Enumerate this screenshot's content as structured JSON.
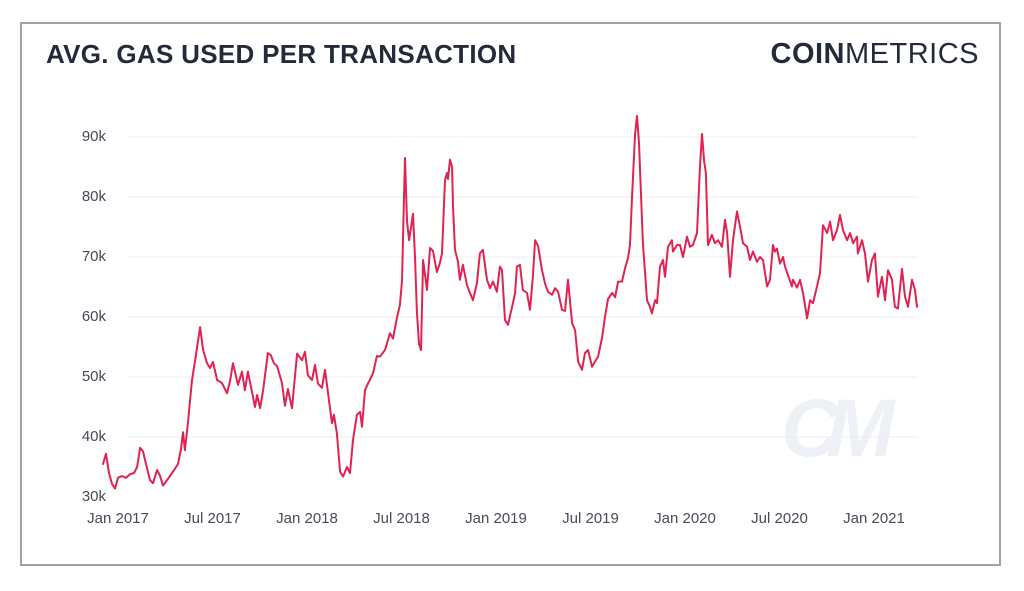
{
  "card": {
    "title": "AVG. GAS USED PER TRANSACTION",
    "logo": {
      "bold": "COIN",
      "light": "METRICS"
    },
    "watermark": "CM"
  },
  "chart_data": {
    "type": "line",
    "title": "AVG. GAS USED PER TRANSACTION",
    "grid": "horizontal",
    "legend": "none",
    "x_axis": {
      "unit": "months since Jan 2017",
      "tick_labels": [
        "Jan 2017",
        "Jul 2017",
        "Jan 2018",
        "Jul 2018",
        "Jan 2019",
        "Jul 2019",
        "Jan 2020",
        "Jul 2020",
        "Jan 2021"
      ],
      "tick_months": [
        0,
        6,
        12,
        18,
        24,
        30,
        36,
        42,
        48
      ],
      "range_months": [
        -1,
        50.8
      ]
    },
    "y_axis": {
      "unit": "gas (thousands)",
      "tick_values": [
        90,
        80,
        70,
        60,
        50,
        40,
        30
      ],
      "tick_labels": [
        "90k",
        "80k",
        "70k",
        "60k",
        "50k",
        "40k",
        "30k"
      ],
      "gridline_values": [
        90,
        80,
        70,
        60,
        50,
        40
      ],
      "ylim": [
        30,
        95
      ]
    },
    "series": [
      {
        "name": "Avg. gas used per transaction",
        "color": "#e02350",
        "points": [
          [
            -0.95,
            35.5
          ],
          [
            -0.76,
            37.2
          ],
          [
            -0.57,
            34.0
          ],
          [
            -0.38,
            32.2
          ],
          [
            -0.19,
            31.4
          ],
          [
            0,
            33.2
          ],
          [
            0.25,
            33.5
          ],
          [
            0.51,
            33.2
          ],
          [
            0.76,
            33.8
          ],
          [
            1.02,
            34.0
          ],
          [
            1.21,
            35.0
          ],
          [
            1.4,
            38.2
          ],
          [
            1.59,
            37.6
          ],
          [
            1.78,
            35.5
          ],
          [
            2.03,
            32.8
          ],
          [
            2.22,
            32.3
          ],
          [
            2.48,
            34.5
          ],
          [
            2.67,
            33.5
          ],
          [
            2.86,
            31.9
          ],
          [
            3.11,
            32.8
          ],
          [
            3.3,
            33.5
          ],
          [
            3.56,
            34.5
          ],
          [
            3.81,
            35.5
          ],
          [
            4.0,
            38.0
          ],
          [
            4.13,
            40.8
          ],
          [
            4.25,
            37.8
          ],
          [
            4.44,
            42.3
          ],
          [
            4.7,
            49.5
          ],
          [
            4.89,
            52.6
          ],
          [
            5.08,
            56.0
          ],
          [
            5.21,
            58.3
          ],
          [
            5.4,
            54.5
          ],
          [
            5.65,
            52.3
          ],
          [
            5.84,
            51.5
          ],
          [
            6.03,
            52.5
          ],
          [
            6.29,
            49.5
          ],
          [
            6.6,
            49.0
          ],
          [
            6.92,
            47.3
          ],
          [
            7.11,
            49.3
          ],
          [
            7.3,
            52.3
          ],
          [
            7.62,
            48.7
          ],
          [
            7.87,
            50.9
          ],
          [
            8.06,
            47.8
          ],
          [
            8.25,
            50.9
          ],
          [
            8.51,
            47.5
          ],
          [
            8.7,
            45.0
          ],
          [
            8.83,
            47.0
          ],
          [
            9.02,
            44.8
          ],
          [
            9.21,
            47.8
          ],
          [
            9.52,
            54.0
          ],
          [
            9.71,
            53.6
          ],
          [
            9.9,
            52.3
          ],
          [
            10.1,
            51.8
          ],
          [
            10.41,
            49.0
          ],
          [
            10.6,
            45.2
          ],
          [
            10.79,
            48.0
          ],
          [
            11.05,
            44.8
          ],
          [
            11.37,
            53.9
          ],
          [
            11.68,
            52.8
          ],
          [
            11.87,
            54.2
          ],
          [
            12.06,
            50.3
          ],
          [
            12.32,
            49.5
          ],
          [
            12.51,
            52.0
          ],
          [
            12.7,
            48.9
          ],
          [
            12.95,
            48.2
          ],
          [
            13.14,
            51.2
          ],
          [
            13.33,
            47.5
          ],
          [
            13.59,
            42.3
          ],
          [
            13.71,
            43.7
          ],
          [
            13.9,
            40.6
          ],
          [
            14.1,
            34.2
          ],
          [
            14.29,
            33.4
          ],
          [
            14.54,
            35.0
          ],
          [
            14.73,
            34.0
          ],
          [
            14.92,
            39.5
          ],
          [
            15.17,
            43.7
          ],
          [
            15.37,
            44.2
          ],
          [
            15.49,
            41.7
          ],
          [
            15.68,
            47.8
          ],
          [
            15.87,
            48.9
          ],
          [
            16.19,
            50.6
          ],
          [
            16.44,
            53.5
          ],
          [
            16.63,
            53.4
          ],
          [
            16.95,
            54.5
          ],
          [
            17.27,
            57.3
          ],
          [
            17.46,
            56.4
          ],
          [
            17.71,
            59.8
          ],
          [
            17.9,
            62.0
          ],
          [
            18.03,
            66.0
          ],
          [
            18.16,
            80.0
          ],
          [
            18.22,
            86.5
          ],
          [
            18.35,
            76.0
          ],
          [
            18.48,
            72.8
          ],
          [
            18.73,
            77.2
          ],
          [
            18.86,
            70.0
          ],
          [
            18.98,
            60.9
          ],
          [
            19.11,
            55.5
          ],
          [
            19.24,
            54.5
          ],
          [
            19.37,
            69.5
          ],
          [
            19.62,
            64.5
          ],
          [
            19.81,
            71.5
          ],
          [
            20.0,
            71.0
          ],
          [
            20.25,
            67.5
          ],
          [
            20.44,
            69.0
          ],
          [
            20.57,
            70.6
          ],
          [
            20.76,
            82.8
          ],
          [
            20.89,
            84.0
          ],
          [
            20.95,
            83.0
          ],
          [
            21.08,
            86.2
          ],
          [
            21.21,
            85.0
          ],
          [
            21.27,
            78.4
          ],
          [
            21.4,
            71.2
          ],
          [
            21.59,
            69.2
          ],
          [
            21.71,
            66.2
          ],
          [
            21.9,
            68.7
          ],
          [
            22.16,
            65.3
          ],
          [
            22.35,
            64.0
          ],
          [
            22.54,
            62.8
          ],
          [
            22.79,
            65.6
          ],
          [
            22.98,
            70.6
          ],
          [
            23.17,
            71.2
          ],
          [
            23.43,
            66.2
          ],
          [
            23.62,
            64.8
          ],
          [
            23.81,
            65.9
          ],
          [
            24.06,
            64.2
          ],
          [
            24.25,
            68.4
          ],
          [
            24.38,
            67.8
          ],
          [
            24.57,
            59.5
          ],
          [
            24.76,
            58.7
          ],
          [
            25.02,
            61.7
          ],
          [
            25.21,
            64.0
          ],
          [
            25.33,
            68.4
          ],
          [
            25.52,
            68.7
          ],
          [
            25.71,
            64.5
          ],
          [
            25.97,
            64.0
          ],
          [
            26.16,
            61.2
          ],
          [
            26.35,
            67.0
          ],
          [
            26.48,
            72.8
          ],
          [
            26.67,
            71.8
          ],
          [
            26.92,
            67.8
          ],
          [
            27.11,
            65.6
          ],
          [
            27.3,
            64.2
          ],
          [
            27.56,
            63.7
          ],
          [
            27.75,
            64.8
          ],
          [
            27.94,
            64.2
          ],
          [
            28.19,
            61.2
          ],
          [
            28.38,
            61.0
          ],
          [
            28.57,
            66.2
          ],
          [
            28.83,
            59.0
          ],
          [
            29.02,
            57.8
          ],
          [
            29.21,
            52.6
          ],
          [
            29.46,
            51.2
          ],
          [
            29.65,
            54.0
          ],
          [
            29.84,
            54.5
          ],
          [
            30.1,
            51.7
          ],
          [
            30.29,
            52.6
          ],
          [
            30.48,
            53.4
          ],
          [
            30.73,
            56.5
          ],
          [
            30.92,
            60.0
          ],
          [
            31.11,
            63.0
          ],
          [
            31.37,
            64.0
          ],
          [
            31.56,
            63.3
          ],
          [
            31.75,
            65.9
          ],
          [
            32.0,
            65.9
          ],
          [
            32.19,
            68.1
          ],
          [
            32.38,
            69.8
          ],
          [
            32.51,
            72.0
          ],
          [
            32.63,
            79.5
          ],
          [
            32.83,
            90.6
          ],
          [
            32.95,
            93.5
          ],
          [
            33.08,
            89.0
          ],
          [
            33.21,
            80.0
          ],
          [
            33.33,
            72.3
          ],
          [
            33.59,
            62.8
          ],
          [
            33.78,
            61.7
          ],
          [
            33.9,
            60.6
          ],
          [
            34.1,
            62.8
          ],
          [
            34.22,
            62.3
          ],
          [
            34.41,
            68.4
          ],
          [
            34.6,
            69.5
          ],
          [
            34.73,
            66.7
          ],
          [
            34.92,
            71.7
          ],
          [
            35.17,
            72.8
          ],
          [
            35.24,
            70.9
          ],
          [
            35.49,
            72.0
          ],
          [
            35.68,
            72.0
          ],
          [
            35.87,
            70.0
          ],
          [
            36.13,
            73.4
          ],
          [
            36.32,
            71.7
          ],
          [
            36.51,
            72.0
          ],
          [
            36.76,
            74.0
          ],
          [
            36.95,
            85.1
          ],
          [
            37.08,
            90.5
          ],
          [
            37.21,
            86.0
          ],
          [
            37.33,
            84.0
          ],
          [
            37.46,
            72.0
          ],
          [
            37.71,
            73.7
          ],
          [
            37.9,
            72.3
          ],
          [
            38.1,
            72.8
          ],
          [
            38.35,
            71.7
          ],
          [
            38.54,
            76.2
          ],
          [
            38.67,
            74.0
          ],
          [
            38.86,
            66.7
          ],
          [
            39.05,
            72.8
          ],
          [
            39.3,
            77.6
          ],
          [
            39.49,
            75.1
          ],
          [
            39.68,
            72.3
          ],
          [
            39.94,
            71.7
          ],
          [
            40.13,
            69.5
          ],
          [
            40.32,
            70.9
          ],
          [
            40.57,
            69.2
          ],
          [
            40.76,
            70.0
          ],
          [
            40.95,
            69.5
          ],
          [
            41.21,
            65.1
          ],
          [
            41.4,
            66.2
          ],
          [
            41.59,
            72.0
          ],
          [
            41.71,
            70.9
          ],
          [
            41.84,
            71.4
          ],
          [
            42.03,
            68.9
          ],
          [
            42.22,
            70.0
          ],
          [
            42.35,
            68.4
          ],
          [
            42.54,
            67.0
          ],
          [
            42.79,
            65.1
          ],
          [
            42.86,
            66.2
          ],
          [
            43.11,
            64.9
          ],
          [
            43.3,
            66.2
          ],
          [
            43.49,
            64.0
          ],
          [
            43.75,
            59.8
          ],
          [
            43.94,
            62.8
          ],
          [
            44.13,
            62.3
          ],
          [
            44.38,
            65.1
          ],
          [
            44.57,
            67.3
          ],
          [
            44.76,
            75.3
          ],
          [
            45.02,
            74.0
          ],
          [
            45.21,
            75.9
          ],
          [
            45.4,
            72.8
          ],
          [
            45.65,
            74.5
          ],
          [
            45.84,
            77.0
          ],
          [
            46.03,
            74.5
          ],
          [
            46.29,
            72.8
          ],
          [
            46.48,
            74.0
          ],
          [
            46.67,
            72.3
          ],
          [
            46.92,
            73.4
          ],
          [
            46.98,
            70.6
          ],
          [
            47.24,
            72.8
          ],
          [
            47.43,
            70.6
          ],
          [
            47.62,
            65.9
          ],
          [
            47.87,
            69.5
          ],
          [
            48.06,
            70.6
          ],
          [
            48.25,
            63.4
          ],
          [
            48.51,
            66.7
          ],
          [
            48.7,
            62.8
          ],
          [
            48.89,
            67.8
          ],
          [
            49.14,
            66.2
          ],
          [
            49.33,
            61.7
          ],
          [
            49.52,
            61.4
          ],
          [
            49.78,
            68.0
          ],
          [
            49.97,
            63.4
          ],
          [
            50.16,
            61.7
          ],
          [
            50.41,
            66.2
          ],
          [
            50.6,
            64.5
          ],
          [
            50.73,
            61.7
          ]
        ]
      }
    ]
  }
}
